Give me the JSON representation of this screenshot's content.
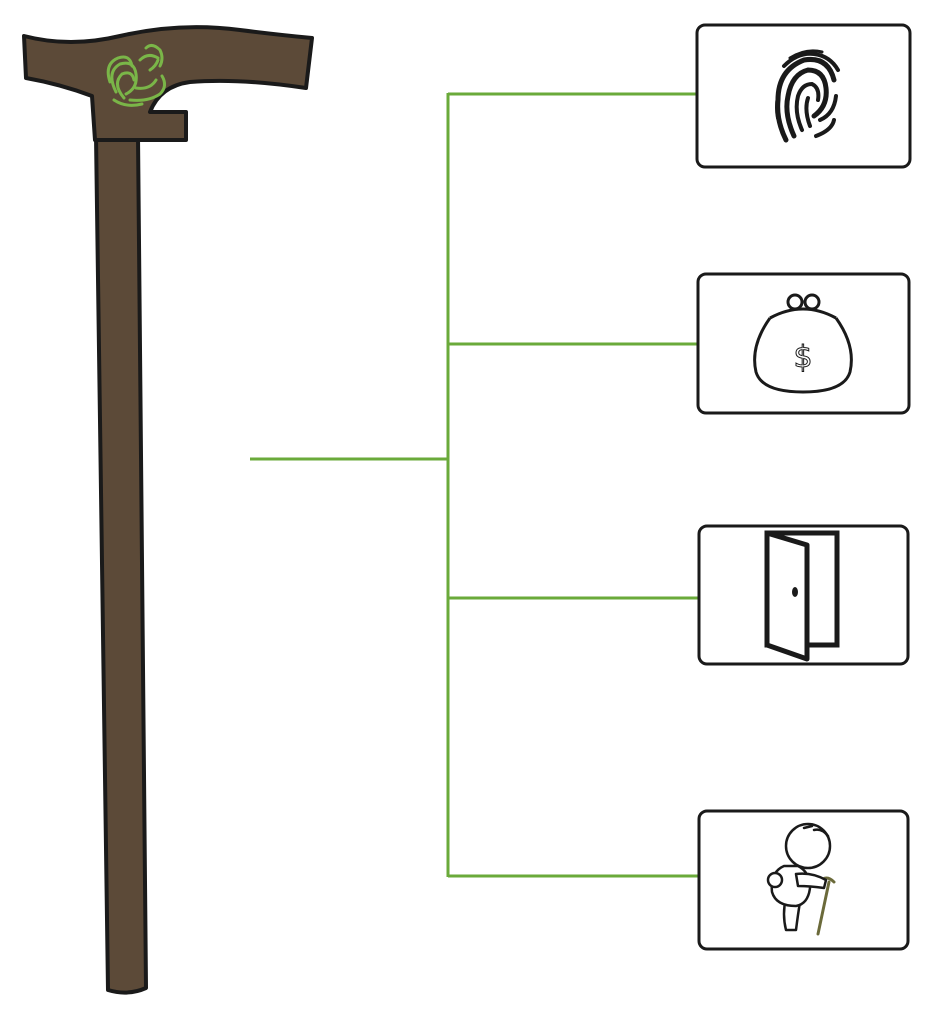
{
  "colors": {
    "cane_body": "#5c4a38",
    "cane_outline": "#1a1a1a",
    "logo_green": "#7ab648",
    "connector_green": "#6aaa3a",
    "card_border": "#1a1a1a",
    "icon_stroke": "#1a1a1a",
    "stick_in_icon": "#6b6a3a"
  },
  "diagram": {
    "source": "walking-cane",
    "logo": "fingerprint-swirl-logo",
    "features": [
      {
        "id": "fingerprint",
        "icon": "fingerprint-icon"
      },
      {
        "id": "money",
        "icon": "coin-purse-dollar-icon"
      },
      {
        "id": "door",
        "icon": "open-door-icon"
      },
      {
        "id": "elderly",
        "icon": "elderly-person-with-cane-icon"
      }
    ],
    "text_currency_symbol": "$"
  }
}
